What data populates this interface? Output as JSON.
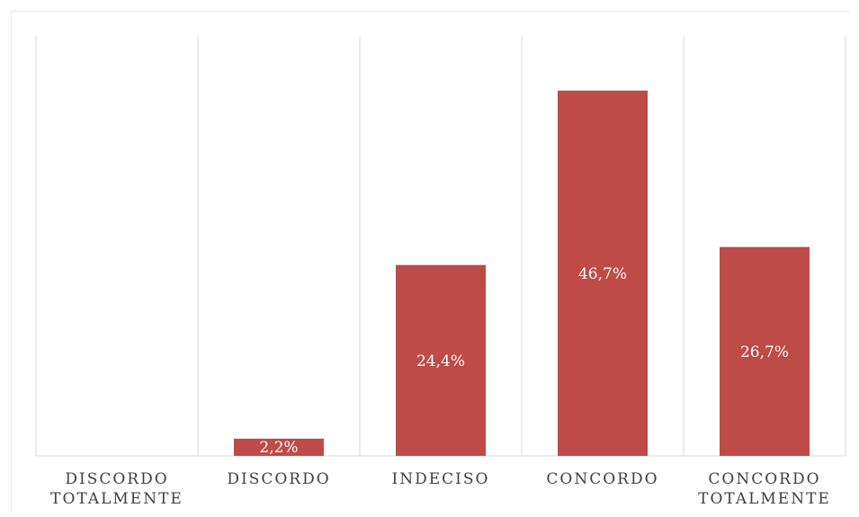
{
  "chart_data": {
    "type": "bar",
    "title": "",
    "xlabel": "",
    "ylabel": "",
    "ylim": [
      0,
      50
    ],
    "grid": "vertical separators between categories",
    "legend": "none",
    "categories": [
      [
        "DISCORDO",
        "TOTALMENTE"
      ],
      [
        "DISCORDO"
      ],
      [
        "INDECISO"
      ],
      [
        "CONCORDO"
      ],
      [
        "CONCORDO",
        "TOTALMENTE"
      ]
    ],
    "values": [
      0,
      2.2,
      24.4,
      46.7,
      26.7
    ],
    "data_labels": [
      "",
      "2,2%",
      "24,4%",
      "46,7%",
      "26,7%"
    ],
    "bar_color": "#be4b48",
    "separator_color": "#d9d9d9",
    "text_color": "#404040"
  }
}
